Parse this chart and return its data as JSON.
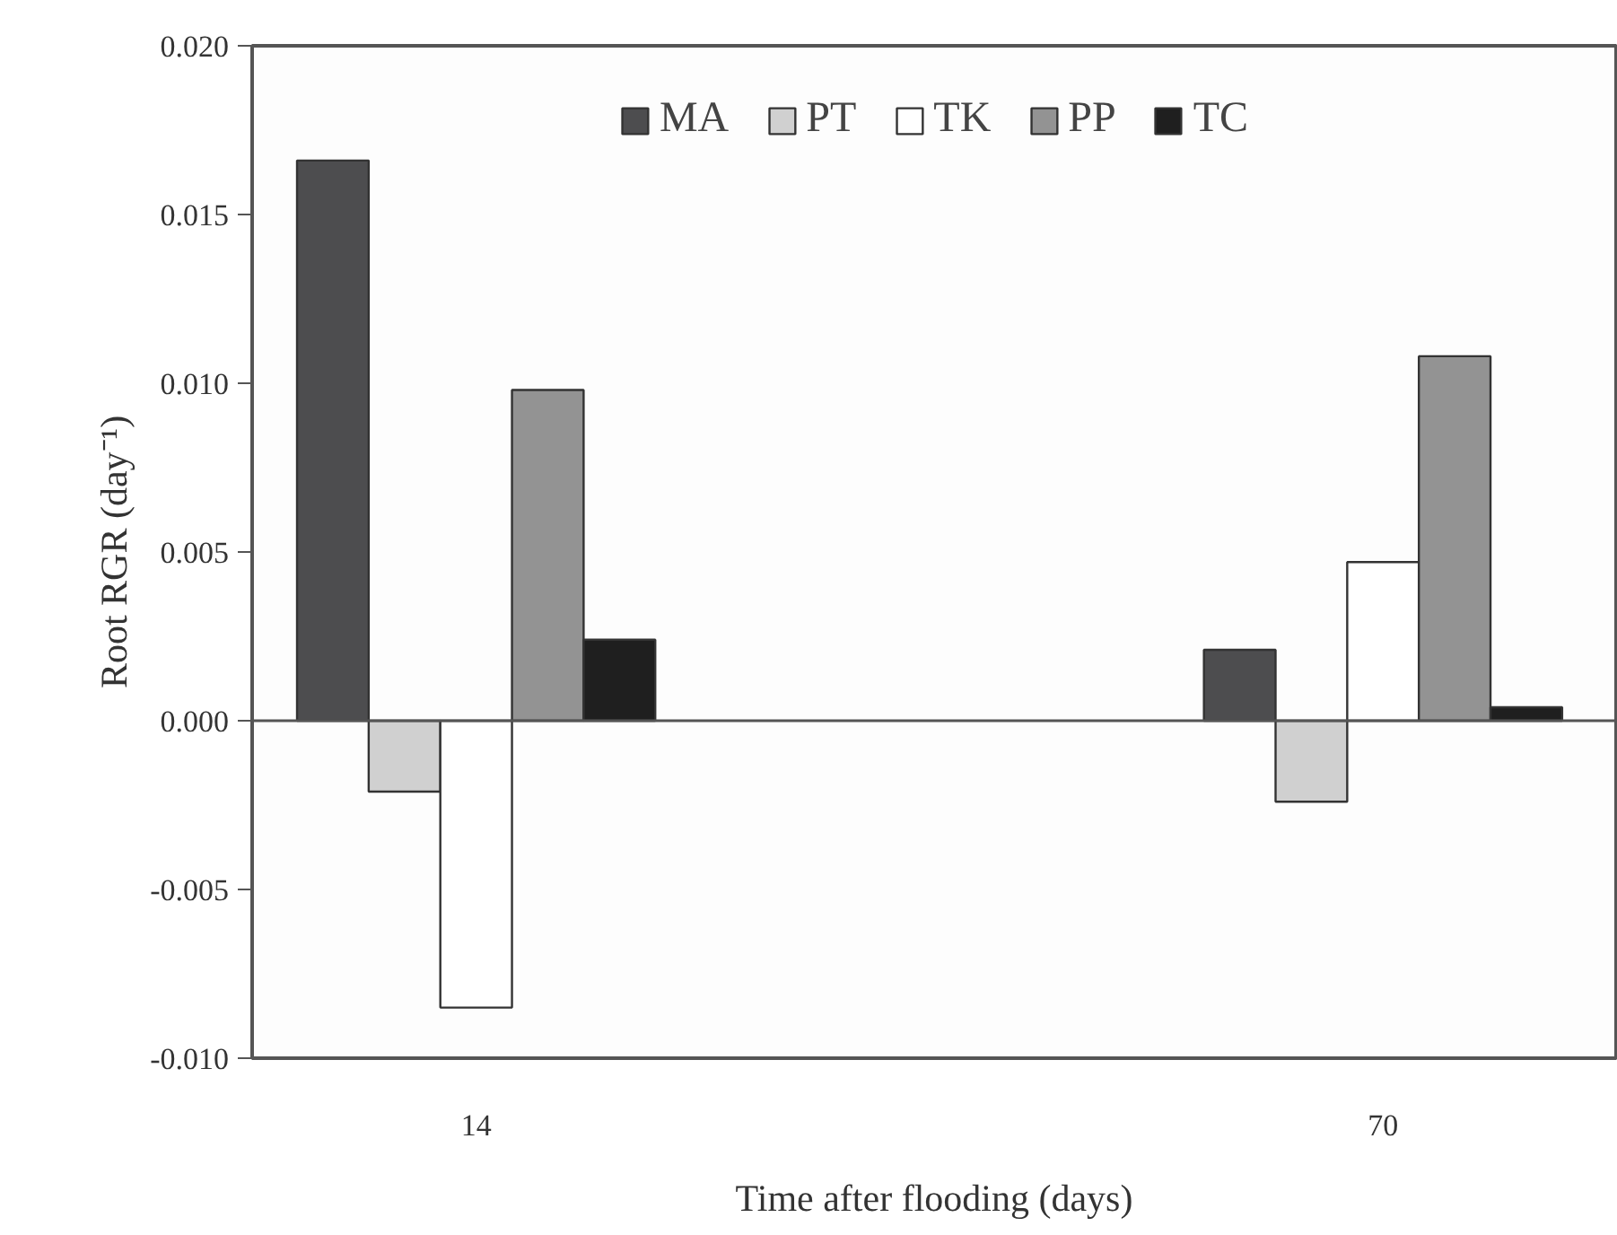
{
  "chart_data": {
    "type": "bar",
    "xlabel": "Time after flooding (days)",
    "ylabel": "Root RGR (day⁻¹)",
    "categories": [
      "14",
      "70"
    ],
    "series": [
      {
        "name": "MA",
        "color": "#4d4d4f",
        "values": [
          0.0166,
          0.0021
        ]
      },
      {
        "name": "PT",
        "color": "#d0d0d0",
        "values": [
          -0.0021,
          -0.0024
        ]
      },
      {
        "name": "TK",
        "color": "#ffffff",
        "values": [
          -0.0085,
          0.0047
        ]
      },
      {
        "name": "PP",
        "color": "#939393",
        "values": [
          0.0098,
          0.0108
        ]
      },
      {
        "name": "TC",
        "color": "#1f1f1f",
        "values": [
          0.0024,
          0.0004
        ]
      }
    ],
    "ylim": [
      -0.01,
      0.02
    ],
    "yticks": [
      {
        "value": -0.01,
        "label": "-0.010"
      },
      {
        "value": -0.005,
        "label": "-0.005"
      },
      {
        "value": 0,
        "label": "0.000"
      },
      {
        "value": 0.005,
        "label": "0.005"
      },
      {
        "value": 0.01,
        "label": "0.010"
      },
      {
        "value": 0.015,
        "label": "0.015"
      },
      {
        "value": 0.02,
        "label": "0.020"
      }
    ],
    "ref_lines": [
      {
        "axis": "y",
        "value": 0
      }
    ],
    "grid": false,
    "legend": "top"
  }
}
